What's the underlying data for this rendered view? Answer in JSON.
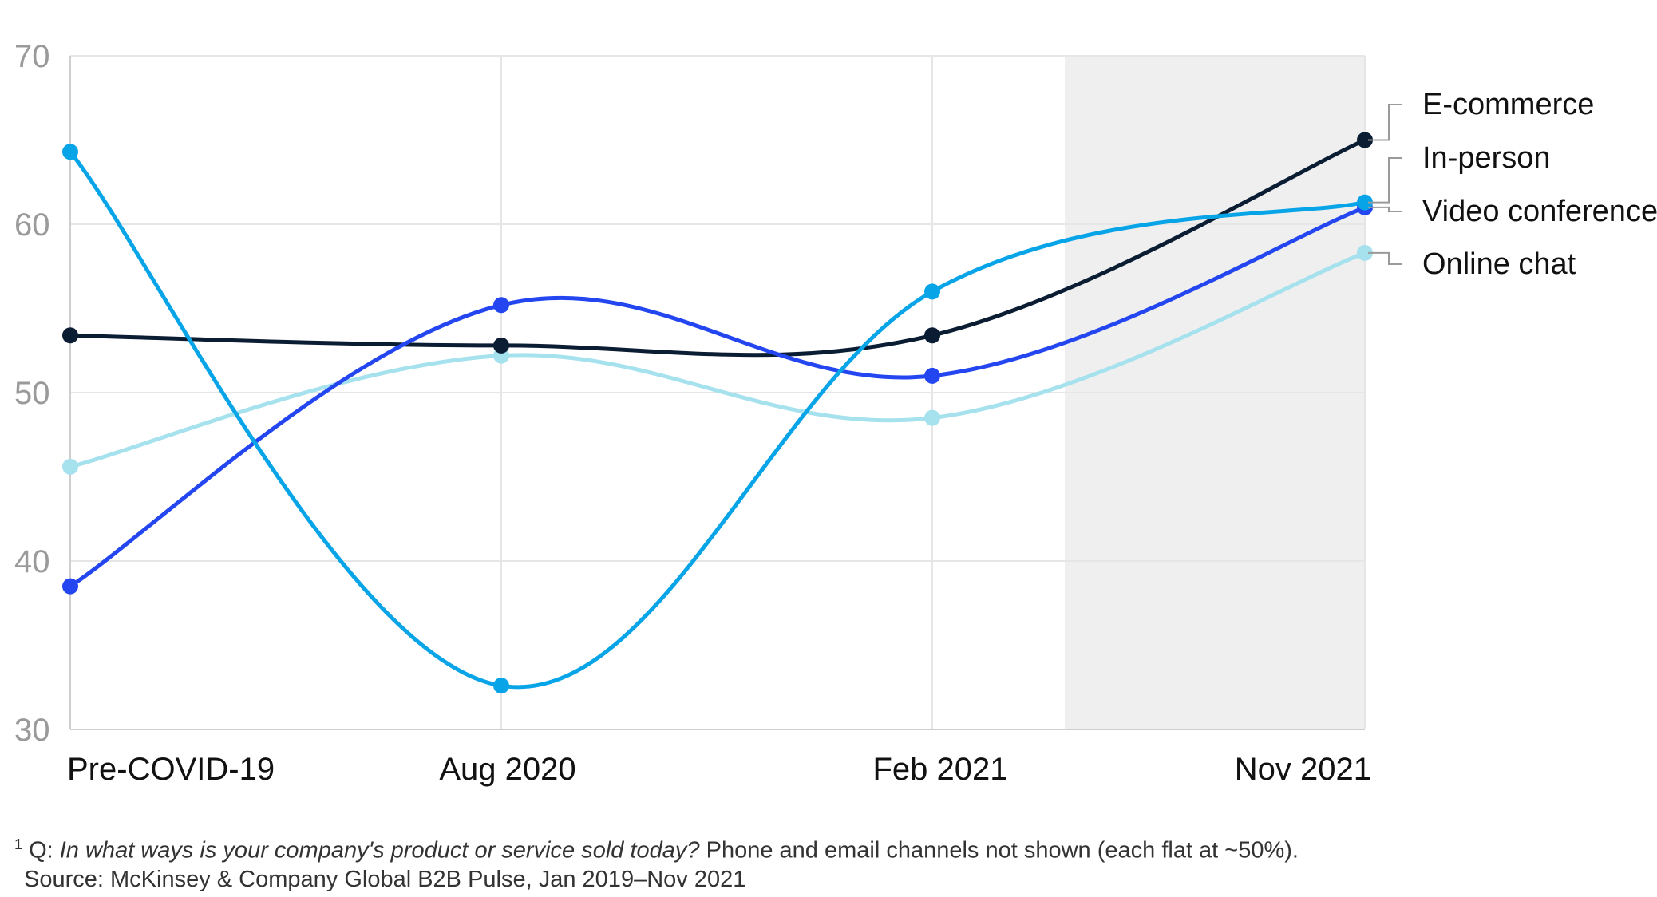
{
  "chart_data": {
    "type": "line",
    "categories": [
      "Pre-COVID-19",
      "Aug 2020",
      "Feb 2021",
      "Nov 2021"
    ],
    "ylim": [
      30,
      70
    ],
    "yticks": [
      "70",
      "60",
      "50",
      "40",
      "30"
    ],
    "grid": true,
    "shaded_period": "Feb 2021–Nov 2021",
    "series": [
      {
        "name": "E-commerce",
        "color": "#0b1d33",
        "values": [
          53.4,
          52.8,
          53.4,
          65.0
        ]
      },
      {
        "name": "In-person",
        "color": "#08a4e8",
        "values": [
          64.3,
          32.6,
          56.0,
          61.3
        ]
      },
      {
        "name": "Video conference",
        "color": "#2446f0",
        "values": [
          38.5,
          55.2,
          51.0,
          61.0
        ]
      },
      {
        "name": "Online chat",
        "color": "#a6e1ee",
        "values": [
          45.6,
          52.2,
          48.5,
          58.3
        ]
      }
    ],
    "legend_position": "right"
  },
  "footnote": {
    "marker": "1",
    "prefix": " Q: ",
    "question": "In what ways is your company's product or service sold today?",
    "note": " Phone and email channels not shown (each flat at ~50%).",
    "source": "Source: McKinsey & Company Global B2B Pulse, Jan 2019–Nov 2021"
  }
}
